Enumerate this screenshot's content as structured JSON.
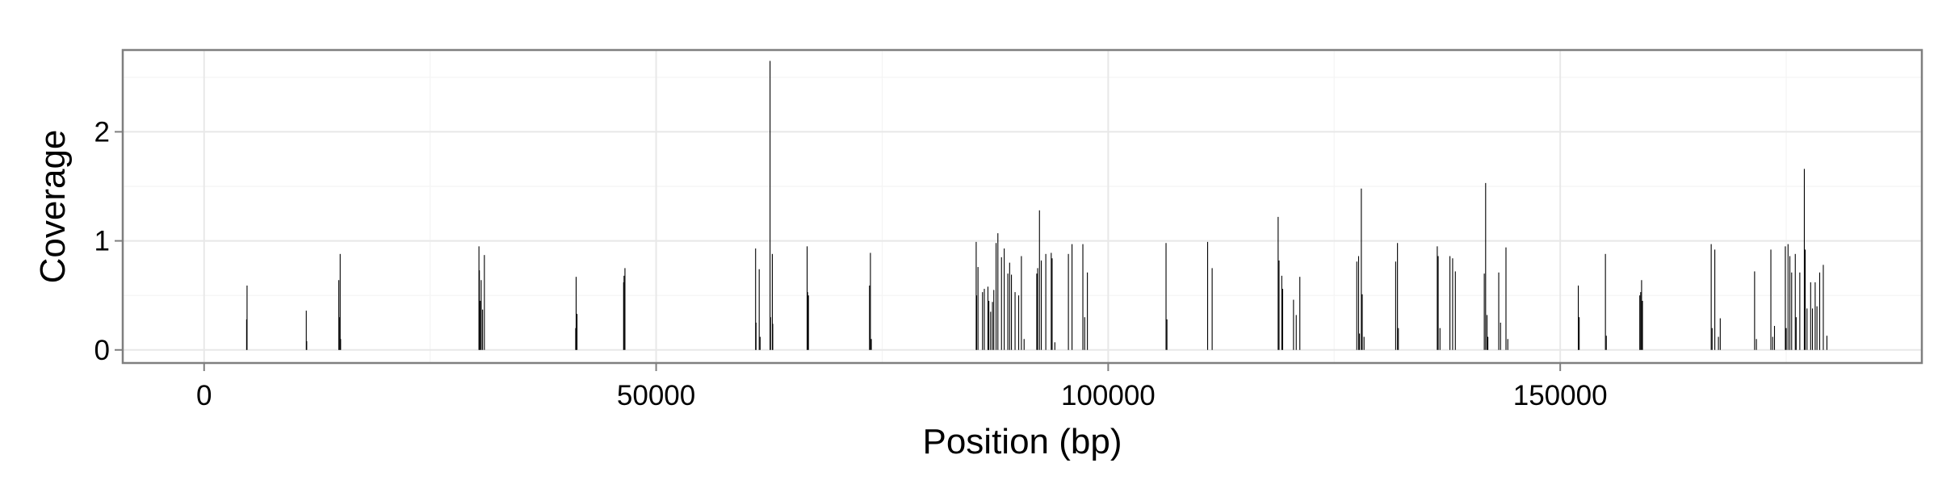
{
  "chart_data": {
    "type": "bar",
    "title": "",
    "xlabel": "Position (bp)",
    "ylabel": "Coverage",
    "xlim": [
      -9000,
      190000
    ],
    "ylim": [
      -0.12,
      2.75
    ],
    "xticks": [
      0,
      50000,
      100000,
      150000
    ],
    "xtick_labels": [
      "0",
      "50000",
      "100000",
      "150000"
    ],
    "yticks": [
      0,
      1,
      2
    ],
    "ytick_labels": [
      "0",
      "1",
      "2"
    ],
    "grid": true,
    "legend": "none",
    "series": [
      {
        "x": [
          4700,
          4750,
          11300,
          11350,
          14900,
          14950,
          15050,
          15100,
          30400,
          30450,
          30550,
          30650,
          30800,
          31000,
          41100,
          41150,
          41250,
          46400,
          46450,
          46550,
          61000,
          61050,
          61400,
          61500,
          62600,
          62650,
          62850,
          62900,
          66700,
          66750,
          66850,
          73600,
          73700,
          73800,
          85400,
          85450,
          85600,
          86100,
          86300,
          86700,
          86800,
          87000,
          87200,
          87350,
          87600,
          87800,
          88200,
          88500,
          88900,
          89100,
          89300,
          89700,
          90100,
          90400,
          90700,
          92100,
          92200,
          92400,
          92600,
          93100,
          93700,
          93800,
          94100,
          95600,
          96000,
          97200,
          97400,
          97700,
          106400,
          106500,
          111000,
          111500,
          118800,
          118900,
          119200,
          119300,
          120500,
          120800,
          121200,
          127500,
          127700,
          127800,
          128000,
          128100,
          128300,
          131800,
          132000,
          132100,
          136400,
          136500,
          136700,
          137800,
          138100,
          138400,
          141600,
          141750,
          141900,
          142000,
          143200,
          143400,
          144000,
          144200,
          152000,
          152100,
          155000,
          155100,
          158800,
          158900,
          159000,
          159100,
          166700,
          166800,
          167100,
          167500,
          167700,
          171500,
          171700,
          173300,
          173500,
          173700,
          174900,
          175000,
          175200,
          175400,
          175600,
          176000,
          176100,
          176500,
          177000,
          177100,
          177300,
          177700,
          177900,
          178200,
          178400,
          178700,
          179100,
          179500
        ],
        "values": [
          0.28,
          0.59,
          0.36,
          0.08,
          0.64,
          0.3,
          0.88,
          0.1,
          0.95,
          0.73,
          0.45,
          0.64,
          0.37,
          0.87,
          0.2,
          0.67,
          0.33,
          0.62,
          0.68,
          0.75,
          0.93,
          0.25,
          0.74,
          0.12,
          2.65,
          0.3,
          0.88,
          0.24,
          0.95,
          0.53,
          0.5,
          0.59,
          0.89,
          0.1,
          0.99,
          0.5,
          0.76,
          0.53,
          0.56,
          0.58,
          0.45,
          0.35,
          0.44,
          0.55,
          0.98,
          1.07,
          0.85,
          0.93,
          0.7,
          0.8,
          0.69,
          0.53,
          0.5,
          0.86,
          0.1,
          0.7,
          0.75,
          1.28,
          0.82,
          0.88,
          0.89,
          0.84,
          0.07,
          0.88,
          0.97,
          0.97,
          0.3,
          0.71,
          0.98,
          0.28,
          0.99,
          0.75,
          1.22,
          0.82,
          0.68,
          0.56,
          0.46,
          0.32,
          0.67,
          0.81,
          0.86,
          0.15,
          1.48,
          0.51,
          0.12,
          0.81,
          0.98,
          0.2,
          0.95,
          0.86,
          0.2,
          0.86,
          0.84,
          0.72,
          0.7,
          1.53,
          0.32,
          0.12,
          0.71,
          0.25,
          0.94,
          0.1,
          0.59,
          0.3,
          0.88,
          0.13,
          0.5,
          0.53,
          0.64,
          0.45,
          0.97,
          0.2,
          0.92,
          0.12,
          0.29,
          0.72,
          0.1,
          0.92,
          0.12,
          0.22,
          0.95,
          0.2,
          0.97,
          0.86,
          0.71,
          0.88,
          0.3,
          0.71,
          1.66,
          0.92,
          0.38,
          0.62,
          0.38,
          0.62,
          0.4,
          0.71,
          0.78,
          0.13
        ]
      }
    ]
  }
}
